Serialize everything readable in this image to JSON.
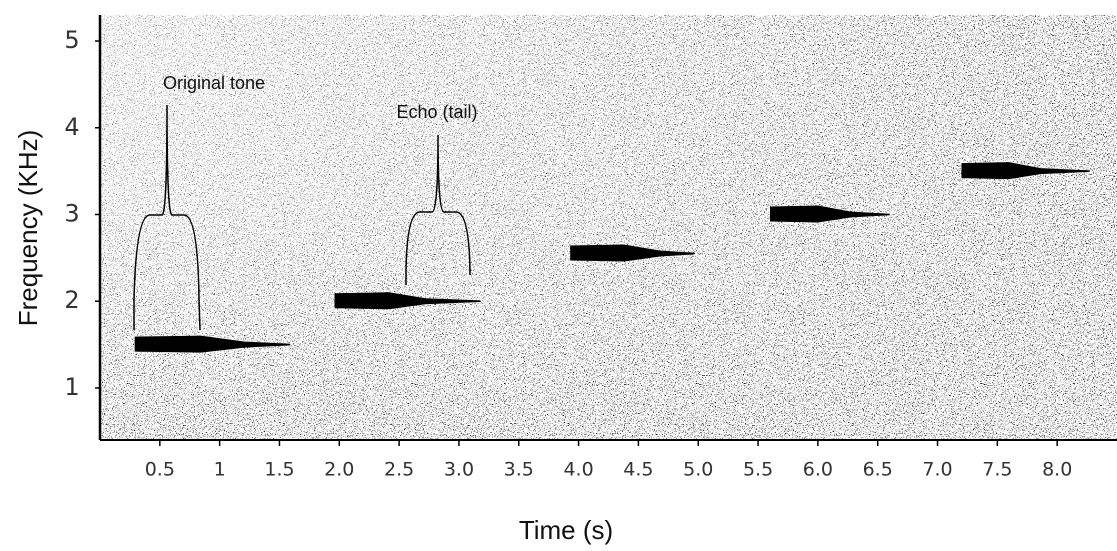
{
  "chart_data": {
    "type": "spectrogram",
    "x_label": "Time (s)",
    "y_label": "Frequency  (KHz)",
    "xlim": [
      0,
      8.5
    ],
    "ylim": [
      0.4,
      5.3
    ],
    "xticks": [
      0.5,
      1,
      1.5,
      {
        "value": 2,
        "label": "2.0"
      },
      2.5,
      {
        "value": 3,
        "label": "3.0"
      },
      3.5,
      {
        "value": 4,
        "label": "4.0"
      },
      4.5,
      {
        "value": 5,
        "label": "5.0"
      },
      5.5,
      {
        "value": 6,
        "label": "6.0"
      },
      6.5,
      {
        "value": 7,
        "label": "7.0"
      },
      7.5,
      {
        "value": 8,
        "label": "8.0"
      }
    ],
    "yticks": [
      1,
      2,
      3,
      4,
      5
    ],
    "color": "#000000",
    "tones": [
      {
        "start": 0.29,
        "end": 1.21,
        "tail_end": 1.59,
        "frequency": 1.5
      },
      {
        "start": 1.96,
        "end": 2.72,
        "tail_end": 3.18,
        "frequency": 2.0
      },
      {
        "start": 3.93,
        "end": 4.68,
        "tail_end": 4.97,
        "frequency": 2.55
      },
      {
        "start": 5.6,
        "end": 6.27,
        "tail_end": 6.6,
        "frequency": 3.0
      },
      {
        "start": 7.2,
        "end": 7.86,
        "tail_end": 8.27,
        "frequency": 3.5
      }
    ],
    "annotations": [
      "Original tone",
      "Echo (tail)"
    ]
  }
}
